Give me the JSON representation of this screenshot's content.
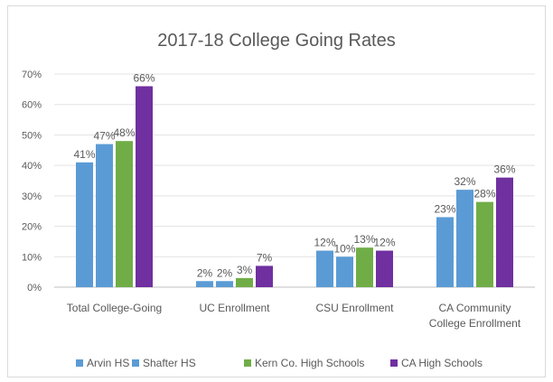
{
  "chart_data": {
    "type": "bar",
    "title": "2017-18 College Going Rates",
    "xlabel": "",
    "ylabel": "",
    "ylim": [
      0,
      70
    ],
    "yticks": [
      "0%",
      "10%",
      "20%",
      "30%",
      "40%",
      "50%",
      "60%",
      "70%"
    ],
    "grid": true,
    "legend_position": "bottom",
    "categories": [
      [
        "Total College-Going"
      ],
      [
        "UC Enrollment"
      ],
      [
        "CSU Enrollment"
      ],
      [
        "CA Community",
        "College Enrollment"
      ]
    ],
    "series": [
      {
        "name": "Arvin HS",
        "color": "#5b9bd5",
        "values": [
          41,
          2,
          12,
          23
        ],
        "labels": [
          "41%",
          "2%",
          "12%",
          "23%"
        ]
      },
      {
        "name": "Shafter HS",
        "color": "#5b9bd5",
        "values": [
          47,
          2,
          10,
          32
        ],
        "labels": [
          "47%",
          "2%",
          "10%",
          "32%"
        ]
      },
      {
        "name": "Kern Co. High Schools",
        "color": "#70ad47",
        "values": [
          48,
          3,
          13,
          28
        ],
        "labels": [
          "48%",
          "3%",
          "13%",
          "28%"
        ]
      },
      {
        "name": "CA High Schools",
        "color": "#7030a0",
        "values": [
          66,
          7,
          12,
          36
        ],
        "labels": [
          "66%",
          "7%",
          "12%",
          "36%"
        ]
      }
    ]
  }
}
